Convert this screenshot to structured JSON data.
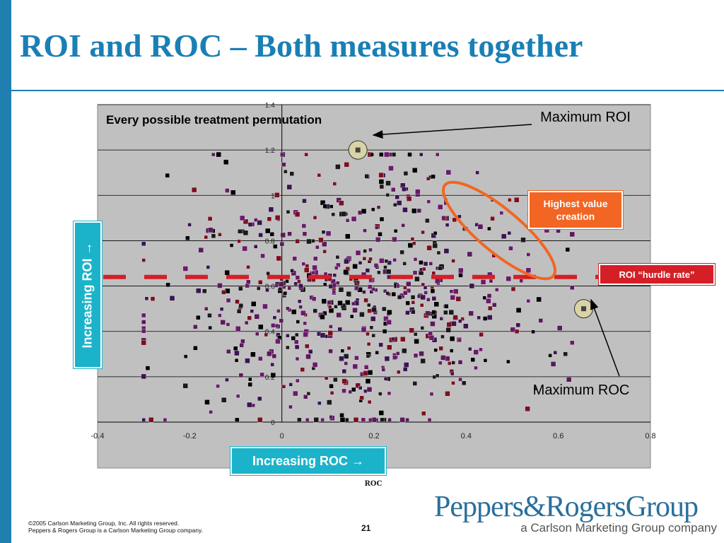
{
  "slide": {
    "title": "ROI and ROC – Both measures together",
    "page_number": "21",
    "footer_line1": "©2005 Carlson Marketing Group, Inc. All rights reserved.",
    "footer_line2": "Peppers & Rogers Group is a Carlson Marketing Group company."
  },
  "logo": {
    "main": "Peppers&RogersGroup",
    "sub": "a Carlson Marketing Group company"
  },
  "callouts": {
    "increasing_roi": "Increasing ROI →",
    "increasing_roc": "Increasing ROC →",
    "highest_value": "Highest value creation",
    "hurdle_rate": "ROI “hurdle rate”",
    "max_roi": "Maximum ROI",
    "max_roc": "Maximum ROC",
    "chart_heading": "Every possible treatment permutation"
  },
  "colors": {
    "accent_blue": "#1a7fb5",
    "teal": "#1bb3c9",
    "orange": "#f26522",
    "red": "#d41f26",
    "plot_bg": "#c0c0c0"
  },
  "chart_data": {
    "type": "scatter",
    "title": "",
    "xlabel": "ROC",
    "ylabel": "",
    "xlim": [
      -0.4,
      0.8
    ],
    "ylim": [
      0,
      1.4
    ],
    "x_ticks": [
      "-0.4",
      "-0.2",
      "0",
      "0.2",
      "0.4",
      "0.6",
      "0.8"
    ],
    "y_ticks": [
      "0",
      "0.2",
      "0.4",
      "0.6",
      "0.8",
      "1",
      "1.2",
      "1.4"
    ],
    "grid": "horizontal",
    "hurdle_rate_y": 0.64,
    "maximum_roi_point": {
      "x": 0.165,
      "y": 1.2
    },
    "maximum_roc_point": {
      "x": 0.655,
      "y": 0.5
    },
    "point_cloud": {
      "count": 700,
      "x_center": 0.17,
      "x_spread": 0.2,
      "y_center": 0.55,
      "y_spread": 0.3
    }
  }
}
